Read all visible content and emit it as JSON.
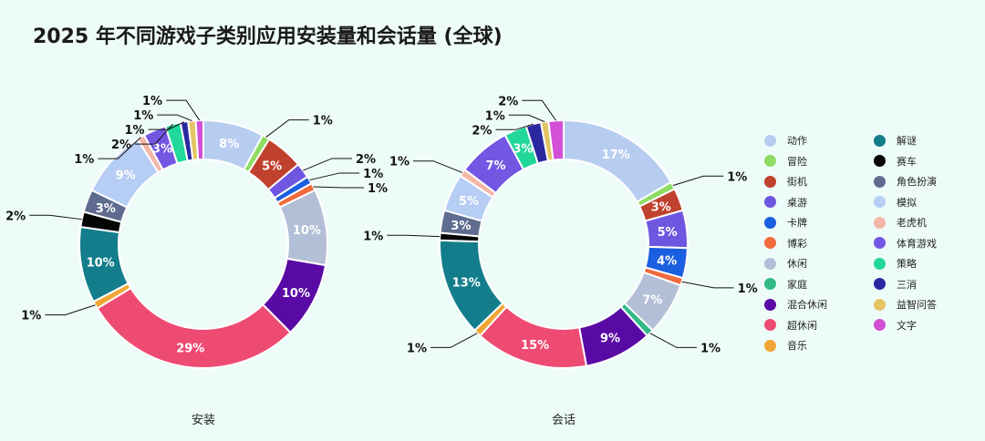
{
  "title": "2025 年不同游戏子类别应用安装量和会话量 (全球)",
  "chart_data": {
    "type": "pie",
    "legend_position": "right",
    "categories": [
      {
        "name": "动作",
        "color": "#b7cdf0"
      },
      {
        "name": "冒险",
        "color": "#8fdc62"
      },
      {
        "name": "街机",
        "color": "#c0412d"
      },
      {
        "name": "桌游",
        "color": "#6f56e0"
      },
      {
        "name": "卡牌",
        "color": "#1a5fe0"
      },
      {
        "name": "博彩",
        "color": "#ef6a3c"
      },
      {
        "name": "休闲",
        "color": "#b3bfd6"
      },
      {
        "name": "家庭",
        "color": "#32ba86"
      },
      {
        "name": "混合休闲",
        "color": "#5a0aa4"
      },
      {
        "name": "超休闲",
        "color": "#ee4b72"
      },
      {
        "name": "音乐",
        "color": "#f0a634"
      },
      {
        "name": "解谜",
        "color": "#137d8b"
      },
      {
        "name": "赛车",
        "color": "#050505"
      },
      {
        "name": "角色扮演",
        "color": "#5f6c8f"
      },
      {
        "name": "模拟",
        "color": "#b6cdf4"
      },
      {
        "name": "老虎机",
        "color": "#f3b7a8"
      },
      {
        "name": "体育游戏",
        "color": "#7257e3"
      },
      {
        "name": "策略",
        "color": "#22d79a"
      },
      {
        "name": "三消",
        "color": "#2a28a0"
      },
      {
        "name": "益智问答",
        "color": "#e4c563"
      },
      {
        "name": "文字",
        "color": "#d24fd6"
      }
    ],
    "series": [
      {
        "name": "安装",
        "values": [
          {
            "category": "动作",
            "value": 8,
            "label": "8%"
          },
          {
            "category": "冒险",
            "value": 1,
            "label": "1%"
          },
          {
            "category": "街机",
            "value": 5,
            "label": "5%"
          },
          {
            "category": "桌游",
            "value": 2,
            "label": "2%"
          },
          {
            "category": "卡牌",
            "value": 1,
            "label": "1%"
          },
          {
            "category": "博彩",
            "value": 1,
            "label": "1%"
          },
          {
            "category": "休闲",
            "value": 10,
            "label": "10%"
          },
          {
            "category": "混合休闲",
            "value": 10,
            "label": "10%"
          },
          {
            "category": "超休闲",
            "value": 29,
            "label": "29%"
          },
          {
            "category": "音乐",
            "value": 1,
            "label": "1%"
          },
          {
            "category": "解谜",
            "value": 10,
            "label": "10%"
          },
          {
            "category": "赛车",
            "value": 2,
            "label": "2%"
          },
          {
            "category": "角色扮演",
            "value": 3,
            "label": "3%"
          },
          {
            "category": "模拟",
            "value": 9,
            "label": "9%"
          },
          {
            "category": "老虎机",
            "value": 1,
            "label": "1%"
          },
          {
            "category": "体育游戏",
            "value": 3,
            "label": "3%"
          },
          {
            "category": "策略",
            "value": 2,
            "label": "2%"
          },
          {
            "category": "三消",
            "value": 1,
            "label": "1%"
          },
          {
            "category": "益智问答",
            "value": 1,
            "label": "1%"
          },
          {
            "category": "文字",
            "value": 1,
            "label": "1%"
          }
        ]
      },
      {
        "name": "会话",
        "values": [
          {
            "category": "动作",
            "value": 17,
            "label": "17%"
          },
          {
            "category": "冒险",
            "value": 1,
            "label": "1%"
          },
          {
            "category": "街机",
            "value": 3,
            "label": "3%"
          },
          {
            "category": "桌游",
            "value": 5,
            "label": "5%"
          },
          {
            "category": "卡牌",
            "value": 4,
            "label": "4%"
          },
          {
            "category": "博彩",
            "value": 1,
            "label": "1%"
          },
          {
            "category": "休闲",
            "value": 7,
            "label": "7%"
          },
          {
            "category": "家庭",
            "value": 1,
            "label": "1%"
          },
          {
            "category": "混合休闲",
            "value": 9,
            "label": "9%"
          },
          {
            "category": "超休闲",
            "value": 15,
            "label": "15%"
          },
          {
            "category": "音乐",
            "value": 1,
            "label": "1%"
          },
          {
            "category": "解谜",
            "value": 13,
            "label": "13%"
          },
          {
            "category": "赛车",
            "value": 1,
            "label": "1%"
          },
          {
            "category": "角色扮演",
            "value": 3,
            "label": "3%"
          },
          {
            "category": "模拟",
            "value": 5,
            "label": "5%"
          },
          {
            "category": "老虎机",
            "value": 1,
            "label": "1%"
          },
          {
            "category": "体育游戏",
            "value": 7,
            "label": "7%"
          },
          {
            "category": "策略",
            "value": 3,
            "label": "3%"
          },
          {
            "category": "三消",
            "value": 2,
            "label": "2%"
          },
          {
            "category": "益智问答",
            "value": 1,
            "label": "1%"
          },
          {
            "category": "文字",
            "value": 2,
            "label": "2%"
          }
        ]
      }
    ]
  }
}
